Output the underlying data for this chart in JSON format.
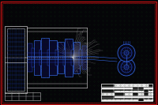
{
  "bg_color": "#050508",
  "border_outer_color": "#cc1111",
  "border_inner_color": "#cc1111",
  "grid_dot_color": "#0d2b0d",
  "blue": "#2244bb",
  "blue2": "#3366dd",
  "white": "#bbbbbb",
  "white2": "#dddddd",
  "cyan": "#00aaaa",
  "title_fg": "#ffffff",
  "fig_width": 2.0,
  "fig_height": 1.33,
  "dpi": 100
}
